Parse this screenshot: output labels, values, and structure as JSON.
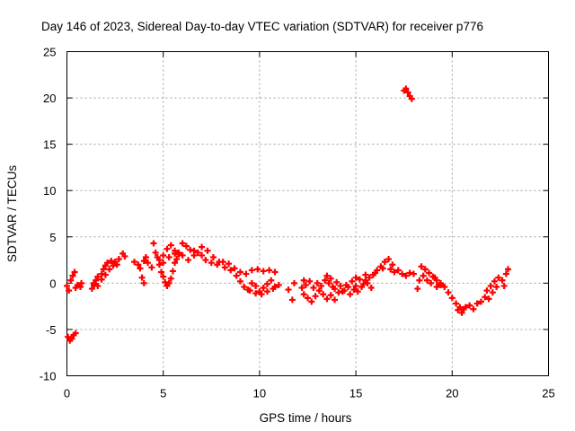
{
  "chart_data": {
    "type": "scatter",
    "title": "Day 146 of 2023, Sidereal Day-to-day VTEC variation (SDTVAR) for receiver p776",
    "xlabel": "GPS time / hours",
    "ylabel": "SDTVAR / TECUs",
    "xlim": [
      0,
      25
    ],
    "ylim": [
      -10,
      25
    ],
    "xticks": [
      "0",
      "5",
      "10",
      "15",
      "20",
      "25"
    ],
    "yticks": [
      "-10",
      "-5",
      "0",
      "5",
      "10",
      "15",
      "20",
      "25"
    ],
    "grid": true,
    "marker": "plus",
    "color": "#ff0000",
    "series": [
      {
        "name": "SDTVAR",
        "points": [
          [
            0.0,
            -0.3
          ],
          [
            0.1,
            -0.8
          ],
          [
            0.2,
            0.3
          ],
          [
            0.3,
            0.8
          ],
          [
            0.4,
            1.2
          ],
          [
            0.45,
            -0.5
          ],
          [
            0.55,
            -0.2
          ],
          [
            0.7,
            -0.4
          ],
          [
            0.75,
            0.0
          ],
          [
            0.05,
            -5.8
          ],
          [
            0.15,
            -6.2
          ],
          [
            0.25,
            -6.0
          ],
          [
            0.35,
            -5.6
          ],
          [
            0.45,
            -5.4
          ],
          [
            1.3,
            -0.6
          ],
          [
            1.4,
            -0.2
          ],
          [
            1.5,
            0.3
          ],
          [
            1.6,
            0.7
          ],
          [
            1.8,
            1.0
          ],
          [
            1.9,
            1.5
          ],
          [
            2.0,
            1.9
          ],
          [
            2.1,
            2.2
          ],
          [
            2.3,
            2.4
          ],
          [
            2.5,
            2.3
          ],
          [
            2.7,
            2.6
          ],
          [
            2.9,
            3.2
          ],
          [
            3.0,
            2.9
          ],
          [
            1.4,
            0.0
          ],
          [
            1.6,
            -0.3
          ],
          [
            1.8,
            0.4
          ],
          [
            2.0,
            0.9
          ],
          [
            2.2,
            1.5
          ],
          [
            2.4,
            1.9
          ],
          [
            2.6,
            2.0
          ],
          [
            3.5,
            2.3
          ],
          [
            3.7,
            2.0
          ],
          [
            3.8,
            1.6
          ],
          [
            4.0,
            2.4
          ],
          [
            4.1,
            2.8
          ],
          [
            3.9,
            0.6
          ],
          [
            4.0,
            0.0
          ],
          [
            4.2,
            2.2
          ],
          [
            4.4,
            1.7
          ],
          [
            4.5,
            4.3
          ],
          [
            4.6,
            3.3
          ],
          [
            4.7,
            2.8
          ],
          [
            4.8,
            2.0
          ],
          [
            4.9,
            1.2
          ],
          [
            5.0,
            0.7
          ],
          [
            5.1,
            0.1
          ],
          [
            5.2,
            -0.3
          ],
          [
            5.3,
            0.0
          ],
          [
            5.4,
            0.5
          ],
          [
            5.5,
            1.3
          ],
          [
            5.6,
            2.2
          ],
          [
            5.7,
            2.6
          ],
          [
            5.8,
            3.1
          ],
          [
            4.8,
            2.5
          ],
          [
            5.0,
            3.0
          ],
          [
            5.2,
            3.7
          ],
          [
            5.4,
            4.1
          ],
          [
            5.6,
            3.5
          ],
          [
            5.8,
            3.3
          ],
          [
            6.0,
            4.3
          ],
          [
            6.2,
            4.0
          ],
          [
            6.4,
            3.6
          ],
          [
            6.6,
            3.0
          ],
          [
            6.8,
            3.3
          ],
          [
            7.0,
            3.0
          ],
          [
            5.0,
            2.2
          ],
          [
            5.3,
            2.8
          ],
          [
            5.6,
            3.2
          ],
          [
            6.0,
            3.0
          ],
          [
            6.3,
            2.5
          ],
          [
            6.6,
            3.5
          ],
          [
            7.0,
            3.9
          ],
          [
            7.3,
            3.5
          ],
          [
            7.6,
            2.8
          ],
          [
            7.9,
            2.3
          ],
          [
            8.2,
            1.7
          ],
          [
            8.5,
            1.4
          ],
          [
            7.2,
            2.5
          ],
          [
            7.5,
            2.2
          ],
          [
            7.8,
            2.0
          ],
          [
            8.1,
            2.3
          ],
          [
            8.4,
            2.1
          ],
          [
            8.7,
            1.6
          ],
          [
            9.0,
            1.2
          ],
          [
            9.3,
            1.0
          ],
          [
            9.6,
            1.4
          ],
          [
            9.9,
            1.5
          ],
          [
            10.2,
            1.3
          ],
          [
            10.5,
            1.4
          ],
          [
            10.8,
            1.2
          ],
          [
            8.8,
            0.8
          ],
          [
            9.0,
            0.2
          ],
          [
            9.2,
            -0.4
          ],
          [
            9.4,
            -0.7
          ],
          [
            9.6,
            0.0
          ],
          [
            9.8,
            -0.3
          ],
          [
            10.0,
            -0.9
          ],
          [
            10.2,
            -0.5
          ],
          [
            10.4,
            -0.1
          ],
          [
            10.6,
            0.3
          ],
          [
            10.8,
            -0.4
          ],
          [
            11.0,
            -0.2
          ],
          [
            9.5,
            -0.8
          ],
          [
            9.8,
            -1.1
          ],
          [
            10.1,
            -1.2
          ],
          [
            10.4,
            -0.9
          ],
          [
            10.7,
            -0.6
          ],
          [
            11.5,
            -0.7
          ],
          [
            11.7,
            -1.8
          ],
          [
            11.8,
            0.0
          ],
          [
            12.2,
            -0.5
          ],
          [
            12.3,
            0.3
          ],
          [
            12.3,
            -1.2
          ],
          [
            12.5,
            -1.6
          ],
          [
            12.7,
            -2.0
          ],
          [
            12.9,
            -1.4
          ],
          [
            13.1,
            -0.8
          ],
          [
            13.3,
            -1.2
          ],
          [
            13.5,
            -1.7
          ],
          [
            13.7,
            -1.3
          ],
          [
            13.9,
            -1.8
          ],
          [
            12.4,
            -0.2
          ],
          [
            12.6,
            0.2
          ],
          [
            12.8,
            -0.5
          ],
          [
            13.0,
            0.0
          ],
          [
            13.2,
            -0.3
          ],
          [
            13.4,
            0.3
          ],
          [
            13.6,
            0.0
          ],
          [
            13.8,
            -0.4
          ],
          [
            14.0,
            0.1
          ],
          [
            14.2,
            -0.3
          ],
          [
            14.4,
            -0.8
          ],
          [
            14.6,
            -0.4
          ],
          [
            13.5,
            0.8
          ],
          [
            13.7,
            0.5
          ],
          [
            13.9,
            -0.6
          ],
          [
            14.1,
            -1.0
          ],
          [
            14.3,
            -0.9
          ],
          [
            14.5,
            -0.2
          ],
          [
            14.8,
            0.2
          ],
          [
            15.0,
            -0.3
          ],
          [
            15.2,
            0.4
          ],
          [
            15.4,
            -0.1
          ],
          [
            15.6,
            0.0
          ],
          [
            15.8,
            -0.5
          ],
          [
            14.7,
            -1.2
          ],
          [
            14.9,
            -0.7
          ],
          [
            15.1,
            -0.9
          ],
          [
            15.3,
            -0.4
          ],
          [
            15.5,
            0.3
          ],
          [
            15.7,
            0.6
          ],
          [
            15.9,
            0.9
          ],
          [
            16.1,
            1.4
          ],
          [
            16.3,
            1.8
          ],
          [
            16.5,
            2.3
          ],
          [
            16.7,
            2.6
          ],
          [
            16.9,
            2.0
          ],
          [
            15.0,
            0.6
          ],
          [
            15.5,
            0.9
          ],
          [
            16.0,
            1.1
          ],
          [
            16.4,
            1.6
          ],
          [
            16.8,
            1.5
          ],
          [
            17.0,
            1.2
          ],
          [
            17.2,
            1.4
          ],
          [
            17.4,
            1.0
          ],
          [
            17.6,
            0.8
          ],
          [
            17.8,
            1.1
          ],
          [
            18.0,
            1.0
          ],
          [
            17.5,
            20.8
          ],
          [
            17.6,
            21.0
          ],
          [
            17.7,
            20.6
          ],
          [
            17.8,
            20.2
          ],
          [
            17.9,
            19.9
          ],
          [
            18.2,
            -0.6
          ],
          [
            18.3,
            0.3
          ],
          [
            18.5,
            0.8
          ],
          [
            18.7,
            0.3
          ],
          [
            18.9,
            0.0
          ],
          [
            19.1,
            0.6
          ],
          [
            19.2,
            -0.4
          ],
          [
            19.4,
            -0.2
          ],
          [
            18.4,
            1.8
          ],
          [
            18.6,
            1.5
          ],
          [
            18.8,
            1.1
          ],
          [
            19.0,
            0.7
          ],
          [
            19.2,
            0.3
          ],
          [
            19.4,
            0.0
          ],
          [
            19.6,
            -0.4
          ],
          [
            19.8,
            -1.0
          ],
          [
            20.0,
            -1.6
          ],
          [
            20.2,
            -2.2
          ],
          [
            20.4,
            -2.6
          ],
          [
            20.6,
            -2.8
          ],
          [
            20.3,
            -2.9
          ],
          [
            20.5,
            -3.2
          ],
          [
            20.7,
            -2.6
          ],
          [
            20.9,
            -2.4
          ],
          [
            21.1,
            -2.8
          ],
          [
            21.3,
            -2.2
          ],
          [
            21.5,
            -2.0
          ],
          [
            21.7,
            -1.5
          ],
          [
            21.9,
            -1.7
          ],
          [
            22.1,
            -1.0
          ],
          [
            22.3,
            -0.4
          ],
          [
            21.8,
            -0.8
          ],
          [
            22.0,
            -0.3
          ],
          [
            22.2,
            0.2
          ],
          [
            22.4,
            0.6
          ],
          [
            22.6,
            0.3
          ],
          [
            22.8,
            1.0
          ],
          [
            22.9,
            1.5
          ],
          [
            22.7,
            -0.3
          ]
        ]
      }
    ]
  }
}
